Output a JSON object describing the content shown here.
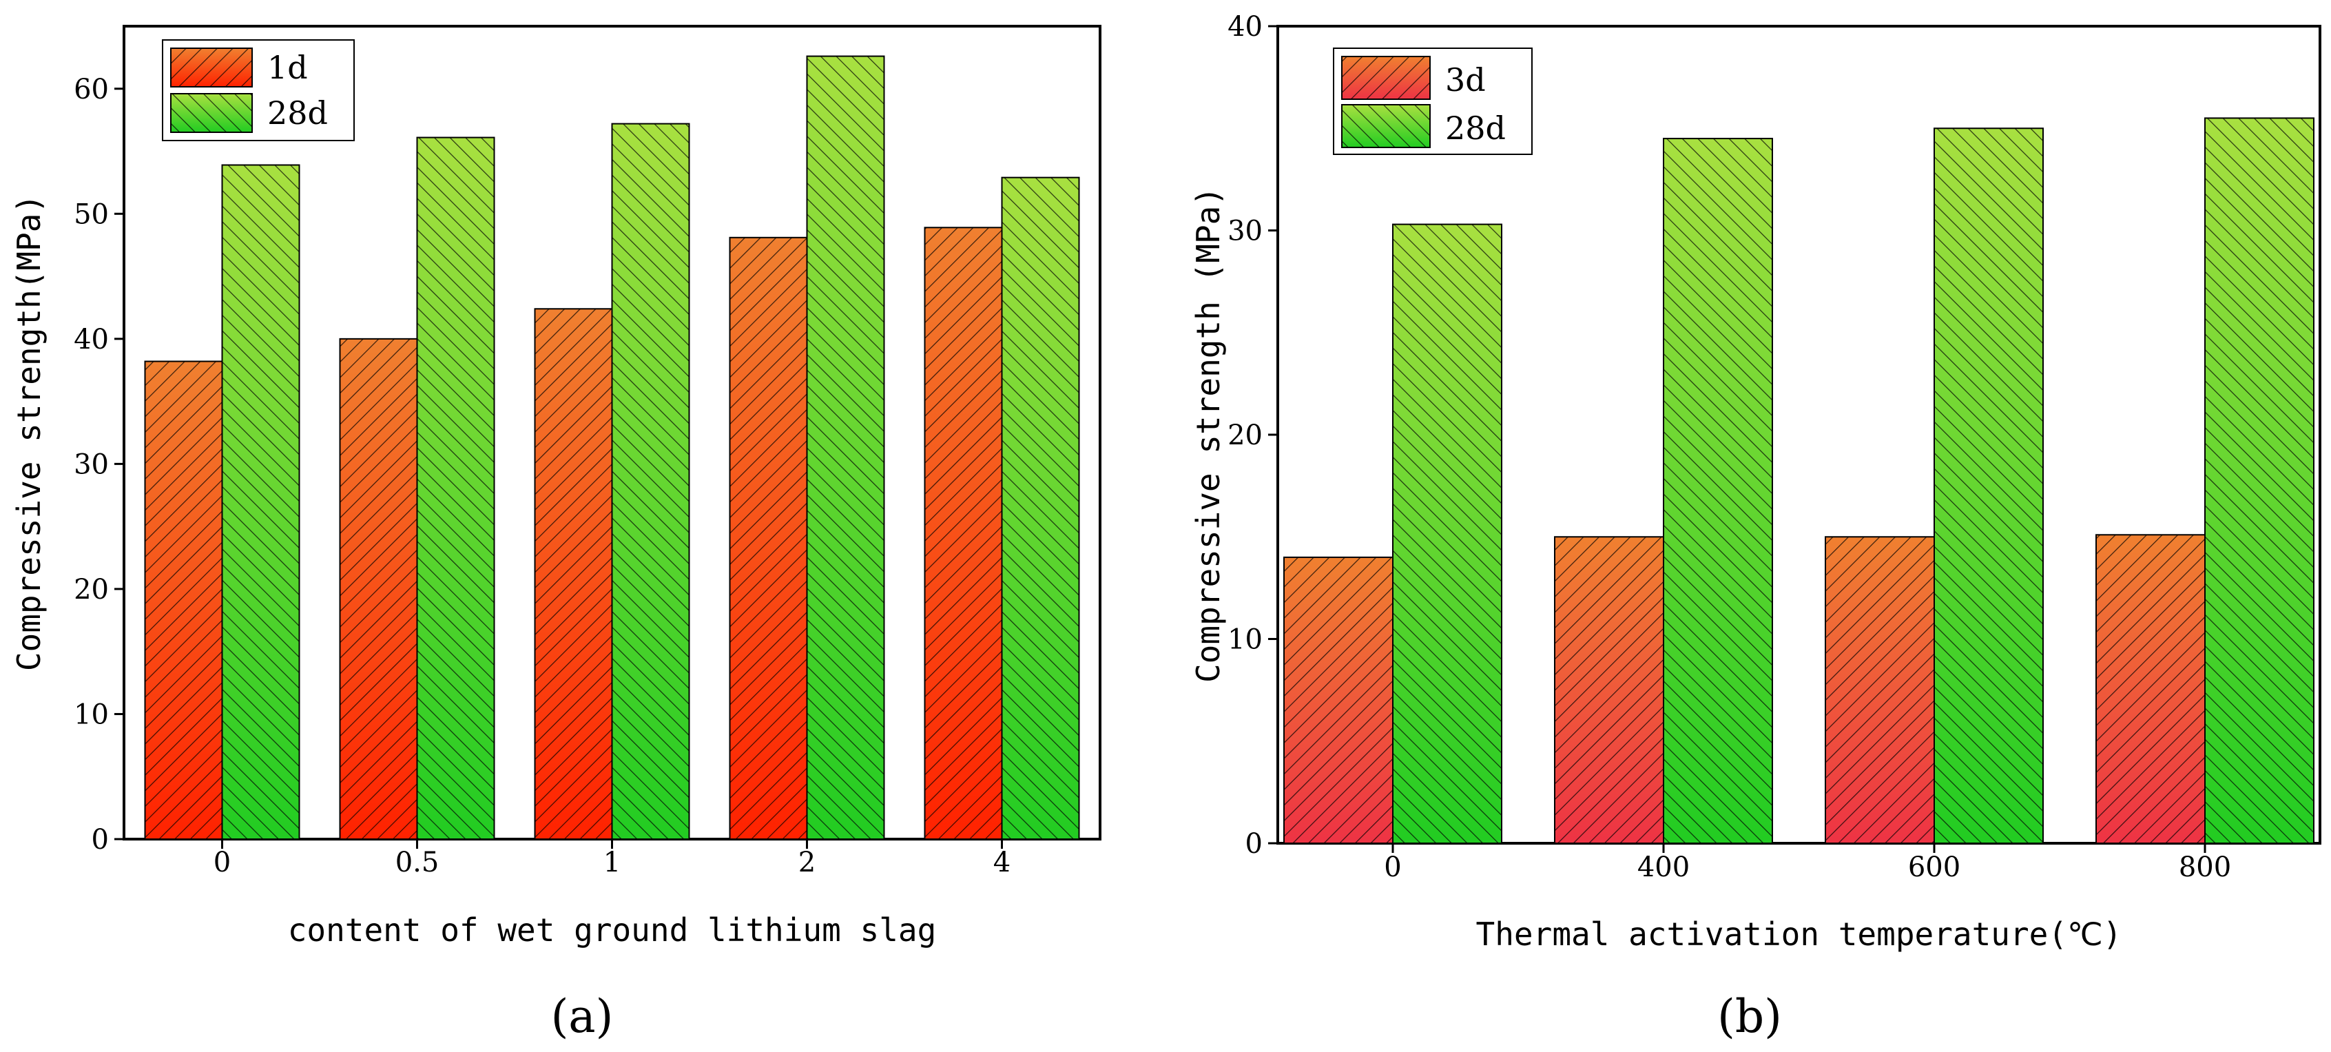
{
  "captions": {
    "a": "(a)",
    "b": "(b)"
  },
  "chart_data": [
    {
      "type": "bar",
      "panel": "a",
      "categories": [
        "0",
        "0.5",
        "1",
        "2",
        "4"
      ],
      "series": [
        {
          "name": "1d",
          "values": [
            38.2,
            40.0,
            42.4,
            48.1,
            48.9
          ]
        },
        {
          "name": "28d",
          "values": [
            53.9,
            56.1,
            57.2,
            62.6,
            52.9
          ]
        }
      ],
      "title": "",
      "xlabel": "content of wet ground lithium slag",
      "ylabel": "Compressive strength(MPa)",
      "ylim": [
        0,
        65
      ],
      "yticks": [
        0,
        10,
        20,
        30,
        40,
        50,
        60
      ],
      "legend_position": "top-left",
      "colors": {
        "early": [
          "#ff2200",
          "#f08030"
        ],
        "late": [
          "#22cc22",
          "#a8e040"
        ]
      }
    },
    {
      "type": "bar",
      "panel": "b",
      "categories": [
        "0",
        "400",
        "600",
        "800"
      ],
      "series": [
        {
          "name": "3d",
          "values": [
            14.0,
            15.0,
            15.0,
            15.1
          ]
        },
        {
          "name": "28d",
          "values": [
            30.3,
            34.5,
            35.0,
            35.5
          ]
        }
      ],
      "title": "",
      "xlabel": "Thermal activation temperature(℃)",
      "ylabel": "Compressive strength (MPa)",
      "ylim": [
        0,
        40
      ],
      "yticks": [
        0,
        10,
        20,
        30,
        40
      ],
      "legend_position": "top-left",
      "colors": {
        "early": [
          "#ee3344",
          "#f08030"
        ],
        "late": [
          "#22cc22",
          "#a8e040"
        ]
      }
    }
  ]
}
